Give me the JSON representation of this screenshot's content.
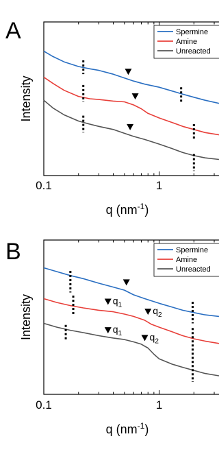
{
  "chart_data": [
    {
      "panel_label": "A",
      "type": "line",
      "xlabel": {
        "base": "q (nm",
        "sup": "-1",
        "tail": ")"
      },
      "ylabel": "Intensity",
      "xscale": "log",
      "xlim": [
        0.1,
        3.3
      ],
      "yscale": "arbitrary",
      "ylim": [
        0,
        10
      ],
      "x_ticks": [
        {
          "value": 0.1,
          "label": "0.1"
        },
        {
          "value": 1,
          "label": "1"
        }
      ],
      "legend": {
        "placement": "top-right"
      },
      "series": [
        {
          "name": "Spermine",
          "color": "#2a6fc2",
          "points": [
            [
              0.1,
              8.1
            ],
            [
              0.12,
              7.75
            ],
            [
              0.15,
              7.4
            ],
            [
              0.2,
              7.1
            ],
            [
              0.25,
              6.95
            ],
            [
              0.3,
              6.85
            ],
            [
              0.4,
              6.6
            ],
            [
              0.5,
              6.35
            ],
            [
              0.6,
              6.15
            ],
            [
              0.75,
              5.95
            ],
            [
              1.0,
              5.75
            ],
            [
              1.3,
              5.5
            ],
            [
              1.6,
              5.3
            ],
            [
              2.0,
              5.1
            ],
            [
              2.5,
              4.9
            ],
            [
              3.3,
              4.7
            ]
          ]
        },
        {
          "name": "Amine",
          "color": "#e8403a",
          "points": [
            [
              0.1,
              6.4
            ],
            [
              0.12,
              6.0
            ],
            [
              0.15,
              5.55
            ],
            [
              0.2,
              5.15
            ],
            [
              0.25,
              5.0
            ],
            [
              0.3,
              4.95
            ],
            [
              0.4,
              4.85
            ],
            [
              0.5,
              4.8
            ],
            [
              0.6,
              4.6
            ],
            [
              0.7,
              4.35
            ],
            [
              0.8,
              4.05
            ],
            [
              1.0,
              3.75
            ],
            [
              1.3,
              3.45
            ],
            [
              1.6,
              3.2
            ],
            [
              2.0,
              3.0
            ],
            [
              2.5,
              2.8
            ],
            [
              3.3,
              2.65
            ]
          ]
        },
        {
          "name": "Unreacted",
          "color": "#555555",
          "points": [
            [
              0.1,
              4.9
            ],
            [
              0.12,
              4.4
            ],
            [
              0.15,
              3.95
            ],
            [
              0.2,
              3.55
            ],
            [
              0.25,
              3.35
            ],
            [
              0.3,
              3.2
            ],
            [
              0.4,
              3.0
            ],
            [
              0.5,
              2.75
            ],
            [
              0.6,
              2.55
            ],
            [
              0.75,
              2.35
            ],
            [
              1.0,
              2.05
            ],
            [
              1.3,
              1.75
            ],
            [
              1.6,
              1.5
            ],
            [
              2.0,
              1.3
            ],
            [
              2.5,
              1.15
            ],
            [
              3.3,
              1.05
            ]
          ]
        }
      ],
      "markers": [
        {
          "x": 0.54,
          "y": 6.55
        },
        {
          "x": 0.62,
          "y": 4.95
        },
        {
          "x": 0.56,
          "y": 2.95
        }
      ],
      "dotted_guides": [
        {
          "x": 0.22,
          "y_top": 7.5,
          "y_bottom": 6.6
        },
        {
          "x": 0.22,
          "y_top": 5.9,
          "y_bottom": 4.8
        },
        {
          "x": 0.22,
          "y_top": 3.9,
          "y_bottom": 2.8
        },
        {
          "x": 1.55,
          "y_top": 5.75,
          "y_bottom": 4.8
        },
        {
          "x": 2.0,
          "y_top": 3.35,
          "y_bottom": 2.4
        },
        {
          "x": 2.0,
          "y_top": 1.4,
          "y_bottom": 0.3
        }
      ],
      "annotations": []
    },
    {
      "panel_label": "B",
      "type": "line",
      "xlabel": {
        "base": "q (nm",
        "sup": "-1",
        "tail": ")"
      },
      "ylabel": "Intensity",
      "xscale": "log",
      "xlim": [
        0.1,
        3.3
      ],
      "yscale": "arbitrary",
      "ylim": [
        0,
        10
      ],
      "x_ticks": [
        {
          "value": 0.1,
          "label": "0.1"
        },
        {
          "value": 1,
          "label": "1"
        }
      ],
      "legend": {
        "placement": "top-right"
      },
      "series": [
        {
          "name": "Spermine",
          "color": "#2a6fc2",
          "points": [
            [
              0.1,
              8.2
            ],
            [
              0.13,
              7.95
            ],
            [
              0.17,
              7.7
            ],
            [
              0.22,
              7.5
            ],
            [
              0.3,
              7.2
            ],
            [
              0.4,
              6.95
            ],
            [
              0.5,
              6.75
            ],
            [
              0.6,
              6.45
            ],
            [
              0.75,
              6.2
            ],
            [
              1.0,
              5.9
            ],
            [
              1.3,
              5.65
            ],
            [
              1.6,
              5.45
            ],
            [
              2.0,
              5.3
            ],
            [
              2.5,
              5.15
            ],
            [
              3.3,
              5.05
            ]
          ]
        },
        {
          "name": "Amine",
          "color": "#e8403a",
          "points": [
            [
              0.1,
              6.2
            ],
            [
              0.13,
              5.95
            ],
            [
              0.17,
              5.75
            ],
            [
              0.22,
              5.6
            ],
            [
              0.3,
              5.45
            ],
            [
              0.4,
              5.35
            ],
            [
              0.5,
              5.2
            ],
            [
              0.6,
              5.05
            ],
            [
              0.75,
              4.8
            ],
            [
              0.85,
              4.55
            ],
            [
              1.0,
              4.35
            ],
            [
              1.3,
              4.05
            ],
            [
              1.6,
              3.8
            ],
            [
              2.0,
              3.6
            ],
            [
              2.5,
              3.45
            ],
            [
              3.3,
              3.3
            ]
          ]
        },
        {
          "name": "Unreacted",
          "color": "#555555",
          "points": [
            [
              0.1,
              4.6
            ],
            [
              0.13,
              4.35
            ],
            [
              0.17,
              4.15
            ],
            [
              0.22,
              4.0
            ],
            [
              0.3,
              3.8
            ],
            [
              0.4,
              3.65
            ],
            [
              0.5,
              3.55
            ],
            [
              0.6,
              3.4
            ],
            [
              0.7,
              3.25
            ],
            [
              0.8,
              3.0
            ],
            [
              0.9,
              2.6
            ],
            [
              1.0,
              2.3
            ],
            [
              1.3,
              1.95
            ],
            [
              1.6,
              1.75
            ],
            [
              2.0,
              1.55
            ],
            [
              2.5,
              1.35
            ],
            [
              3.3,
              1.2
            ]
          ]
        }
      ],
      "markers": [
        {
          "x": 0.52,
          "y": 7.05
        },
        {
          "x": 0.36,
          "y": 5.8
        },
        {
          "x": 0.8,
          "y": 5.15
        },
        {
          "x": 0.36,
          "y": 3.95
        },
        {
          "x": 0.75,
          "y": 3.45
        }
      ],
      "dotted_guides": [
        {
          "x": 0.17,
          "y_top": 8.0,
          "y_bottom": 6.6
        },
        {
          "x": 0.18,
          "y_top": 6.4,
          "y_bottom": 5.2
        },
        {
          "x": 0.155,
          "y_top": 4.5,
          "y_bottom": 3.5
        },
        {
          "x": 1.95,
          "y_top": 6.0,
          "y_bottom": 4.6
        },
        {
          "x": 1.95,
          "y_top": 4.3,
          "y_bottom": 2.8
        },
        {
          "x": 1.95,
          "y_top": 2.7,
          "y_bottom": 0.8
        }
      ],
      "annotations": [
        {
          "x": 0.36,
          "y": 5.8,
          "base": "q",
          "sub": "1"
        },
        {
          "x": 0.8,
          "y": 5.15,
          "base": "q",
          "sub": "2"
        },
        {
          "x": 0.36,
          "y": 3.95,
          "base": "q",
          "sub": "1"
        },
        {
          "x": 0.75,
          "y": 3.45,
          "base": "q",
          "sub": "2"
        }
      ]
    }
  ]
}
